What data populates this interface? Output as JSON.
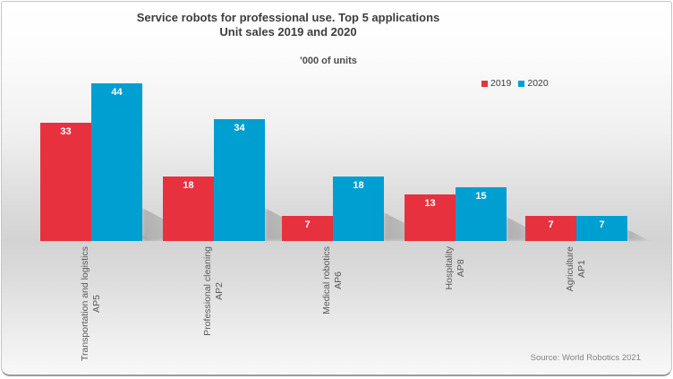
{
  "chart_data": {
    "type": "bar",
    "title": "Service robots for professional use. Top 5 applications",
    "subtitle": "Unit sales 2019 and 2020",
    "units_label": "'000 of units",
    "categories": [
      "Transportation and logistics",
      "Professional cleaning",
      "Medical robotics",
      "Hospitality",
      "Agriculture"
    ],
    "category_codes": [
      "AP5",
      "AP2",
      "AP6",
      "AP8",
      "AP1"
    ],
    "series": [
      {
        "name": "2019",
        "color": "#e8313e",
        "values": [
          33,
          18,
          7,
          13,
          7
        ]
      },
      {
        "name": "2020",
        "color": "#009fd1",
        "values": [
          44,
          34,
          18,
          15,
          7
        ]
      }
    ],
    "value_label_color": "#ffffff",
    "ylim": [
      0,
      44
    ],
    "grid": false,
    "legend_position": "top-right",
    "source": "Source: World Robotics 2021"
  }
}
